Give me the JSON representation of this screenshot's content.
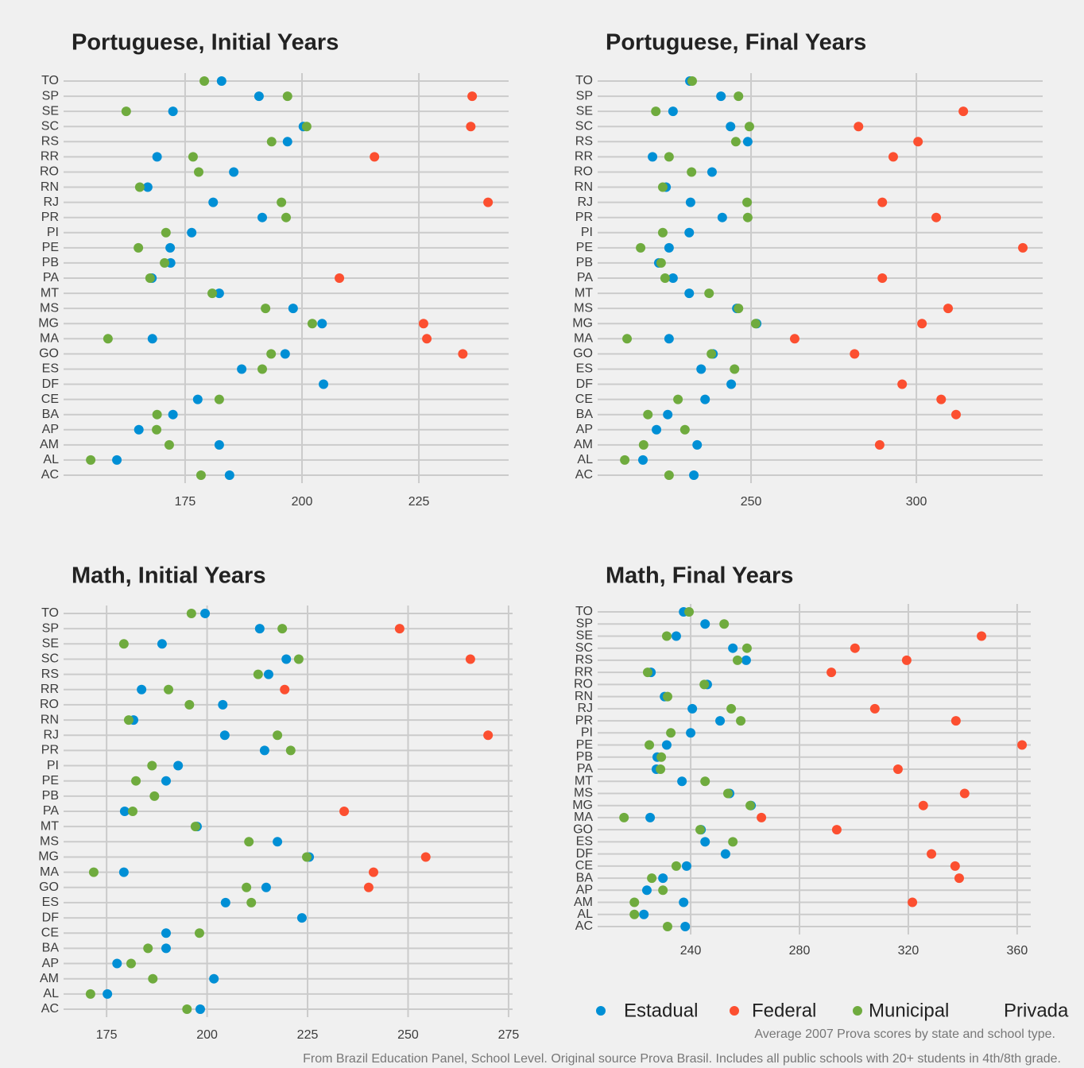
{
  "chart_data": [
    {
      "type": "dot",
      "title": "Portuguese, Initial Years",
      "categories": [
        "AC",
        "AL",
        "AM",
        "AP",
        "BA",
        "CE",
        "DF",
        "ES",
        "GO",
        "MA",
        "MG",
        "MS",
        "MT",
        "PA",
        "PB",
        "PE",
        "PI",
        "PR",
        "RJ",
        "RN",
        "RO",
        "RR",
        "RS",
        "SC",
        "SE",
        "SP",
        "TO"
      ],
      "series": [
        {
          "values": [
            184.5,
            160.4,
            182.3,
            165.1,
            172.4,
            177.7,
            204.6,
            187.1,
            196.4,
            168.0,
            204.3,
            198.1,
            182.3,
            167.9,
            171.9,
            171.8,
            176.4,
            191.5,
            181.0,
            167.0,
            185.4,
            169.0,
            196.9,
            200.3,
            172.4,
            190.8,
            182.8
          ]
        },
        {
          "values": [
            null,
            null,
            null,
            null,
            null,
            null,
            null,
            null,
            234.4,
            226.7,
            226.0,
            null,
            null,
            208.0,
            null,
            null,
            null,
            null,
            239.8,
            null,
            null,
            215.5,
            null,
            236.1,
            null,
            236.4,
            null
          ]
        },
        {
          "values": [
            178.4,
            154.8,
            171.6,
            168.9,
            169.0,
            182.3,
            null,
            191.5,
            193.4,
            158.5,
            202.2,
            192.2,
            180.8,
            167.5,
            170.6,
            165.0,
            170.9,
            196.6,
            195.6,
            165.3,
            177.9,
            176.7,
            193.5,
            201.0,
            162.4,
            196.9,
            179.1
          ]
        }
      ],
      "xlim": [
        149.0,
        244.2
      ],
      "xticks": [
        175,
        200,
        225
      ],
      "grid": true
    },
    {
      "type": "dot",
      "title": "Portuguese, Final Years",
      "categories": [
        "AC",
        "AL",
        "AM",
        "AP",
        "BA",
        "CE",
        "DF",
        "ES",
        "GO",
        "MA",
        "MG",
        "MS",
        "MT",
        "PA",
        "PB",
        "PE",
        "PI",
        "PR",
        "RJ",
        "RN",
        "RO",
        "RR",
        "RS",
        "SC",
        "SE",
        "SP",
        "TO"
      ],
      "series": [
        {
          "values": [
            232.7,
            217.3,
            233.7,
            221.4,
            224.8,
            236.1,
            244.0,
            234.9,
            238.5,
            225.2,
            251.7,
            245.7,
            231.3,
            226.4,
            222.1,
            225.2,
            231.3,
            241.3,
            231.7,
            224.3,
            238.2,
            220.2,
            249.0,
            243.8,
            226.4,
            240.9,
            231.5
          ]
        },
        {
          "values": [
            null,
            null,
            288.9,
            null,
            312.0,
            307.5,
            295.7,
            null,
            281.3,
            263.2,
            301.7,
            309.6,
            null,
            289.7,
            null,
            332.2,
            null,
            306.0,
            289.7,
            null,
            null,
            293.0,
            300.5,
            282.5,
            314.2,
            null,
            null
          ]
        },
        {
          "values": [
            225.2,
            211.8,
            217.5,
            230.0,
            218.8,
            227.9,
            null,
            245.0,
            238.0,
            212.5,
            251.4,
            246.2,
            237.3,
            224.0,
            222.8,
            216.6,
            223.3,
            249.0,
            248.8,
            223.3,
            232.0,
            225.2,
            245.4,
            249.5,
            221.2,
            246.2,
            232.2
          ]
        }
      ],
      "xlim": [
        203.6,
        338.2
      ],
      "xticks": [
        250,
        300
      ],
      "grid": true
    },
    {
      "type": "dot",
      "title": "Math, Initial Years",
      "categories": [
        "AC",
        "AL",
        "AM",
        "AP",
        "BA",
        "CE",
        "DF",
        "ES",
        "GO",
        "MA",
        "MG",
        "MS",
        "MT",
        "PA",
        "PB",
        "PE",
        "PI",
        "PR",
        "RJ",
        "RN",
        "RO",
        "RR",
        "RS",
        "SC",
        "SE",
        "SP",
        "TO"
      ],
      "series": [
        {
          "values": [
            198.3,
            175.2,
            201.7,
            177.6,
            189.8,
            189.8,
            223.6,
            204.6,
            214.7,
            179.3,
            225.4,
            217.5,
            197.5,
            179.5,
            null,
            189.8,
            192.8,
            214.3,
            204.4,
            181.7,
            203.9,
            183.7,
            215.3,
            219.7,
            188.8,
            213.1,
            199.5
          ]
        },
        {
          "values": [
            null,
            null,
            null,
            null,
            null,
            null,
            null,
            null,
            240.2,
            241.4,
            254.4,
            null,
            null,
            234.1,
            null,
            null,
            null,
            null,
            269.9,
            null,
            null,
            219.3,
            null,
            265.5,
            null,
            247.9,
            null
          ]
        },
        {
          "values": [
            195.0,
            171.0,
            186.5,
            181.1,
            185.3,
            198.1,
            null,
            211.0,
            209.8,
            171.8,
            224.8,
            210.4,
            197.1,
            181.5,
            186.9,
            182.3,
            186.3,
            220.8,
            217.5,
            180.5,
            195.6,
            190.4,
            212.7,
            222.8,
            179.3,
            218.7,
            196.1
          ]
        }
      ],
      "xlim": [
        164.3,
        276.0
      ],
      "xticks": [
        175,
        200,
        225,
        250,
        275
      ],
      "grid": true
    },
    {
      "type": "dot",
      "title": "Math, Final Years",
      "categories": [
        "AC",
        "AL",
        "AM",
        "AP",
        "BA",
        "CE",
        "DF",
        "ES",
        "GO",
        "MA",
        "MG",
        "MS",
        "MT",
        "PA",
        "PB",
        "PE",
        "PI",
        "PR",
        "RJ",
        "RN",
        "RO",
        "RR",
        "RS",
        "SC",
        "SE",
        "SP",
        "TO"
      ],
      "series": [
        {
          "values": [
            238.0,
            222.8,
            237.4,
            223.9,
            229.8,
            238.5,
            252.8,
            245.3,
            243.8,
            225.1,
            262.2,
            254.3,
            236.8,
            227.4,
            227.7,
            231.2,
            240.0,
            250.8,
            240.6,
            230.4,
            246.1,
            225.4,
            260.4,
            255.5,
            234.7,
            245.3,
            237.4
          ]
        },
        {
          "values": [
            null,
            null,
            321.5,
            null,
            338.7,
            337.2,
            328.5,
            null,
            293.7,
            266.0,
            325.5,
            340.7,
            null,
            316.2,
            null,
            361.8,
            null,
            337.5,
            307.7,
            null,
            null,
            291.7,
            319.4,
            300.4,
            346.9,
            null,
            null
          ]
        },
        {
          "values": [
            231.5,
            219.3,
            219.3,
            229.8,
            225.7,
            234.7,
            null,
            255.5,
            243.5,
            215.5,
            261.9,
            253.7,
            245.3,
            228.9,
            229.2,
            224.8,
            232.7,
            258.4,
            254.9,
            231.5,
            245.0,
            224.2,
            257.2,
            260.7,
            231.2,
            252.3,
            239.4
          ]
        }
      ],
      "xlim": [
        205.8,
        365.0
      ],
      "xticks": [
        240,
        280,
        320,
        360
      ],
      "grid": true
    }
  ],
  "legend": [
    {
      "name": "Estadual",
      "color": "#008fd5"
    },
    {
      "name": "Federal",
      "color": "#fc4f30"
    },
    {
      "name": "Municipal",
      "color": "#6fab3e"
    },
    {
      "name": "Privada",
      "color": "#f0f0f0"
    }
  ],
  "caption": [
    "Average 2007 Prova scores by state and school type.",
    "From Brazil Education Panel, School Level. Original source Prova Brasil.  Includes all public schools with 20+ students in 4th/8th grade."
  ]
}
